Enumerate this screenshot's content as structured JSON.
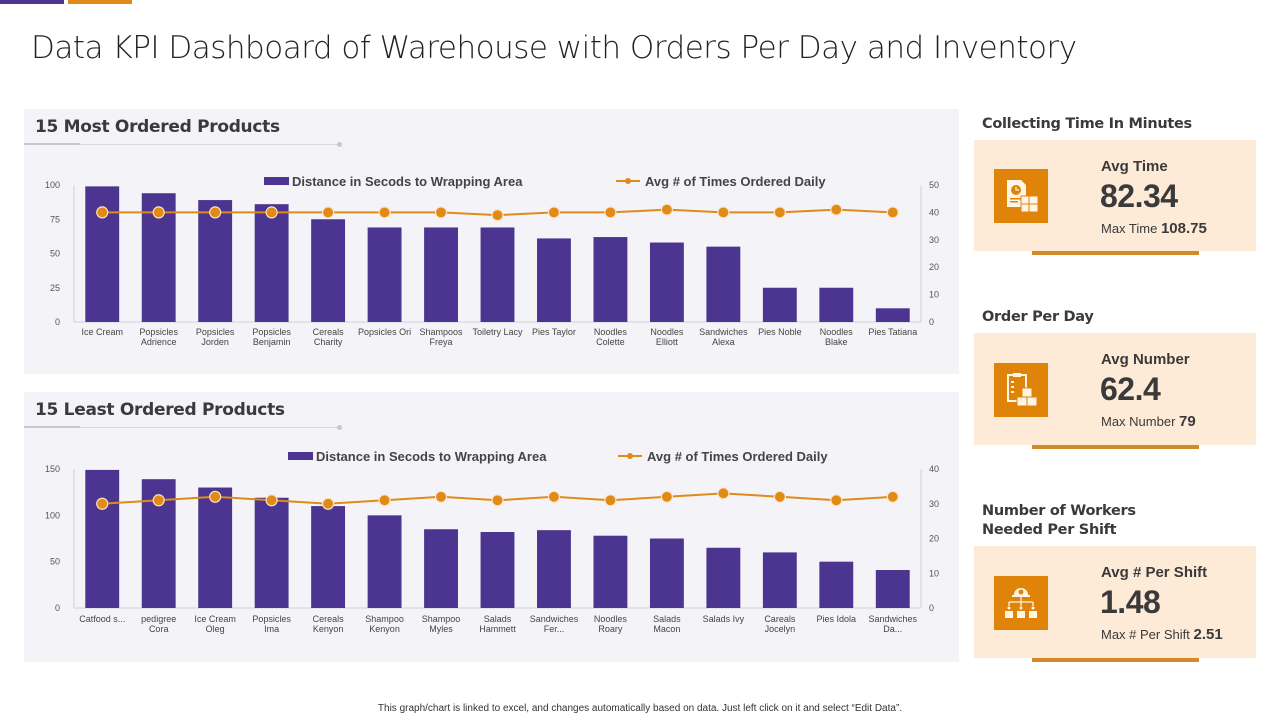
{
  "header": {
    "title": "Data KPI Dashboard of Warehouse with Orders Per Day and Inventory"
  },
  "colors": {
    "bar": "#4b3590",
    "line": "#e08a18",
    "panel_bg": "#f4f3f8",
    "kpi_card_bg": "#fdebd8",
    "kpi_icon_bg": "#e08309"
  },
  "chart_data": [
    {
      "type": "bar",
      "title": "15 Most Ordered Products",
      "categories": [
        [
          "Ice Cream"
        ],
        [
          "Popsicles",
          "Adrience"
        ],
        [
          "Popsicles",
          "Jorden"
        ],
        [
          "Popsicles",
          "Benjamin"
        ],
        [
          "Cereals",
          "Charity"
        ],
        [
          "Popsicles Ori"
        ],
        [
          "Shampoos",
          "Freya"
        ],
        [
          "Toiletry Lacy"
        ],
        [
          "Pies Taylor"
        ],
        [
          "Noodles",
          "Colette"
        ],
        [
          "Noodles",
          "Elliott"
        ],
        [
          "Sandwiches",
          "Alexa"
        ],
        [
          "Pies Noble"
        ],
        [
          "Noodles",
          "Blake"
        ],
        [
          "Pies Tatiana"
        ]
      ],
      "series": [
        {
          "name": "Distance in Secods to Wrapping Area",
          "type": "bar",
          "axis": "left",
          "values": [
            99,
            94,
            89,
            86,
            75,
            69,
            69,
            69,
            61,
            62,
            58,
            55,
            25,
            25,
            10
          ]
        },
        {
          "name": "Avg # of Times Ordered Daily",
          "type": "line",
          "axis": "right",
          "values": [
            40,
            40,
            40,
            40,
            40,
            40,
            40,
            39,
            40,
            40,
            41,
            40,
            40,
            41,
            40
          ]
        }
      ],
      "y_left": {
        "min": 0,
        "max": 100,
        "ticks": [
          0,
          25,
          50,
          75,
          100
        ]
      },
      "y_right": {
        "min": 0,
        "max": 50,
        "ticks": [
          0,
          10,
          20,
          30,
          40,
          50
        ]
      },
      "legend": "top-center",
      "grid": false
    },
    {
      "type": "bar",
      "title": "15 Least Ordered Products",
      "categories": [
        [
          "Catfood s..."
        ],
        [
          "pedigree",
          "Cora"
        ],
        [
          "Ice Cream",
          "Oleg"
        ],
        [
          "Popsicles",
          "Ima"
        ],
        [
          "Cereals",
          "Kenyon"
        ],
        [
          "Shampoo",
          "Kenyon"
        ],
        [
          "Shampoo",
          "Myles"
        ],
        [
          "Salads",
          "Hammett"
        ],
        [
          "Sandwiches",
          "Fer..."
        ],
        [
          "Noodles",
          "Roary"
        ],
        [
          "Salads",
          "Macon"
        ],
        [
          "Salads Ivy"
        ],
        [
          "Careals",
          "Jocelyn"
        ],
        [
          "Pies Idola"
        ],
        [
          "Sandwiches",
          "Da..."
        ]
      ],
      "series": [
        {
          "name": "Distance in Secods to Wrapping Area",
          "type": "bar",
          "axis": "left",
          "values": [
            149,
            139,
            130,
            119,
            110,
            100,
            85,
            82,
            84,
            78,
            75,
            65,
            60,
            50,
            41
          ]
        },
        {
          "name": "Avg # of Times Ordered Daily",
          "type": "line",
          "axis": "right",
          "values": [
            30,
            31,
            32,
            31,
            30,
            31,
            32,
            31,
            32,
            31,
            32,
            33,
            32,
            31,
            32
          ]
        }
      ],
      "y_left": {
        "min": 0,
        "max": 150,
        "ticks": [
          0,
          50,
          100,
          150
        ]
      },
      "y_right": {
        "min": 0,
        "max": 40,
        "ticks": [
          0,
          10,
          20,
          30,
          40
        ]
      },
      "legend": "top-center",
      "grid": false
    }
  ],
  "kpis": [
    {
      "heading": [
        "Collecting Time In Minutes"
      ],
      "icon": "document-clock-boxes-icon",
      "label": "Avg Time",
      "value": "82.34",
      "sub_label": "Max Time",
      "sub_value": "108.75"
    },
    {
      "heading": [
        "Order Per Day"
      ],
      "icon": "clipboard-boxes-icon",
      "label": "Avg Number",
      "value": "62.4",
      "sub_label": "Max Number",
      "sub_value": "79"
    },
    {
      "heading": [
        "Number of Workers",
        "Needed Per Shift"
      ],
      "icon": "worker-hierarchy-icon",
      "label": "Avg # Per Shift",
      "value": "1.48",
      "sub_label": "Max # Per Shift",
      "sub_value": "2.51"
    }
  ],
  "footnote": "This graph/chart is linked to excel, and changes automatically based on data. Just left click on it and select “Edit Data”."
}
